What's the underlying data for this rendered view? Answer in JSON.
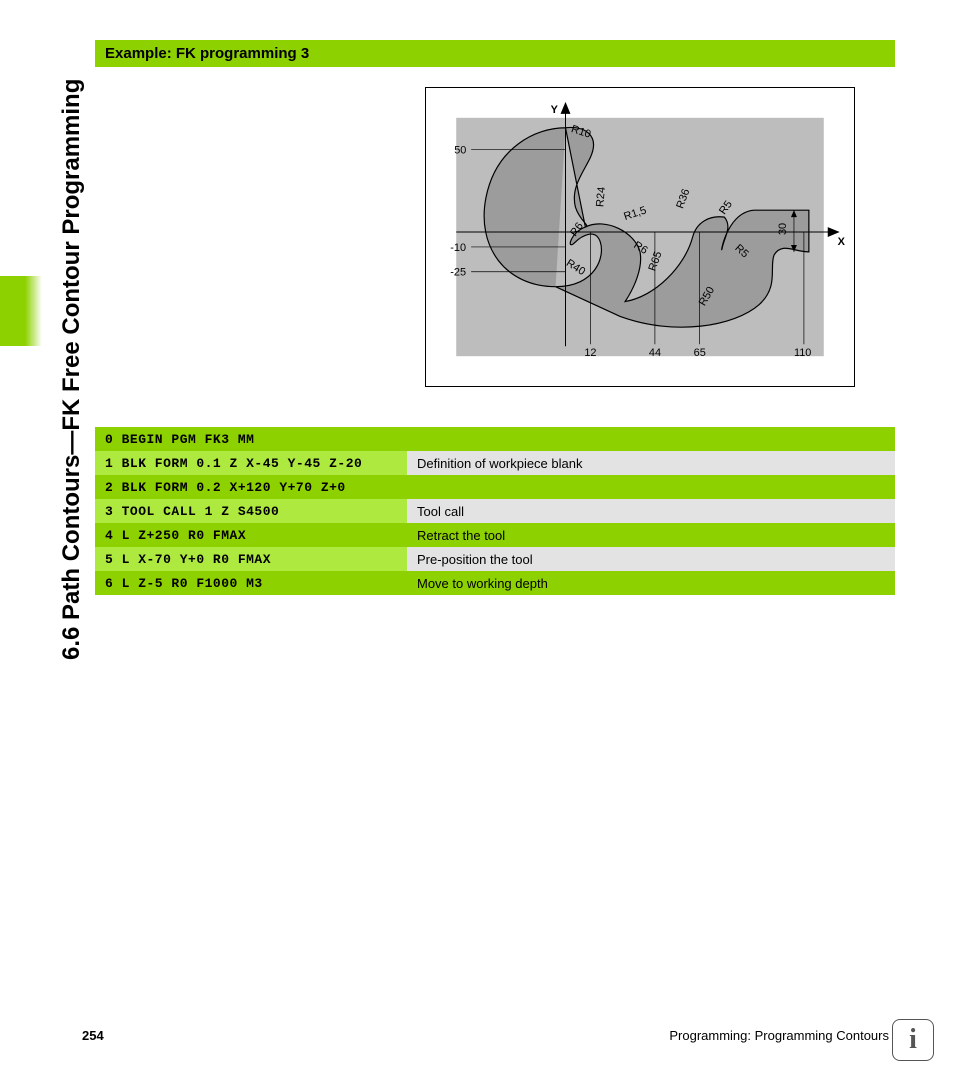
{
  "section_title": "6.6 Path Contours—FK Free Contour Programming",
  "example_title": "Example: FK programming 3",
  "diagram": {
    "axes": {
      "x_label": "X",
      "y_label": "Y"
    },
    "y_ticks": [
      "50",
      "-10",
      "-25"
    ],
    "x_ticks": [
      "12",
      "44",
      "65",
      "110"
    ],
    "radii": [
      "R10",
      "R24",
      "R6",
      "R1,5",
      "R36",
      "R5",
      "R6",
      "R40",
      "R65",
      "R5",
      "R50",
      "30"
    ],
    "colors": {
      "bg": "#bdbdbd",
      "contour_fill": "#9c9c9c",
      "stroke": "#000000",
      "dim_line": "#000000"
    }
  },
  "code_rows": [
    {
      "code": "0 BEGIN PGM FK3 MM",
      "desc": "",
      "style": "dark"
    },
    {
      "code": "1 BLK FORM 0.1 Z X-45 Y-45 Z-20",
      "desc": "Definition of workpiece blank",
      "style": "light"
    },
    {
      "code": "2 BLK FORM 0.2 X+120 Y+70 Z+0",
      "desc": "",
      "style": "dark"
    },
    {
      "code": "3 TOOL CALL 1 Z S4500",
      "desc": "Tool call",
      "style": "light"
    },
    {
      "code": "4 L Z+250 R0 FMAX",
      "desc": "Retract the tool",
      "style": "dark"
    },
    {
      "code": "5 L X-70 Y+0 R0 FMAX",
      "desc": "Pre-position the tool",
      "style": "light"
    },
    {
      "code": "6 L Z-5 R0 F1000 M3",
      "desc": "Move to working depth",
      "style": "dark"
    }
  ],
  "footer": {
    "page": "254",
    "chapter": "Programming: Programming Contours"
  }
}
